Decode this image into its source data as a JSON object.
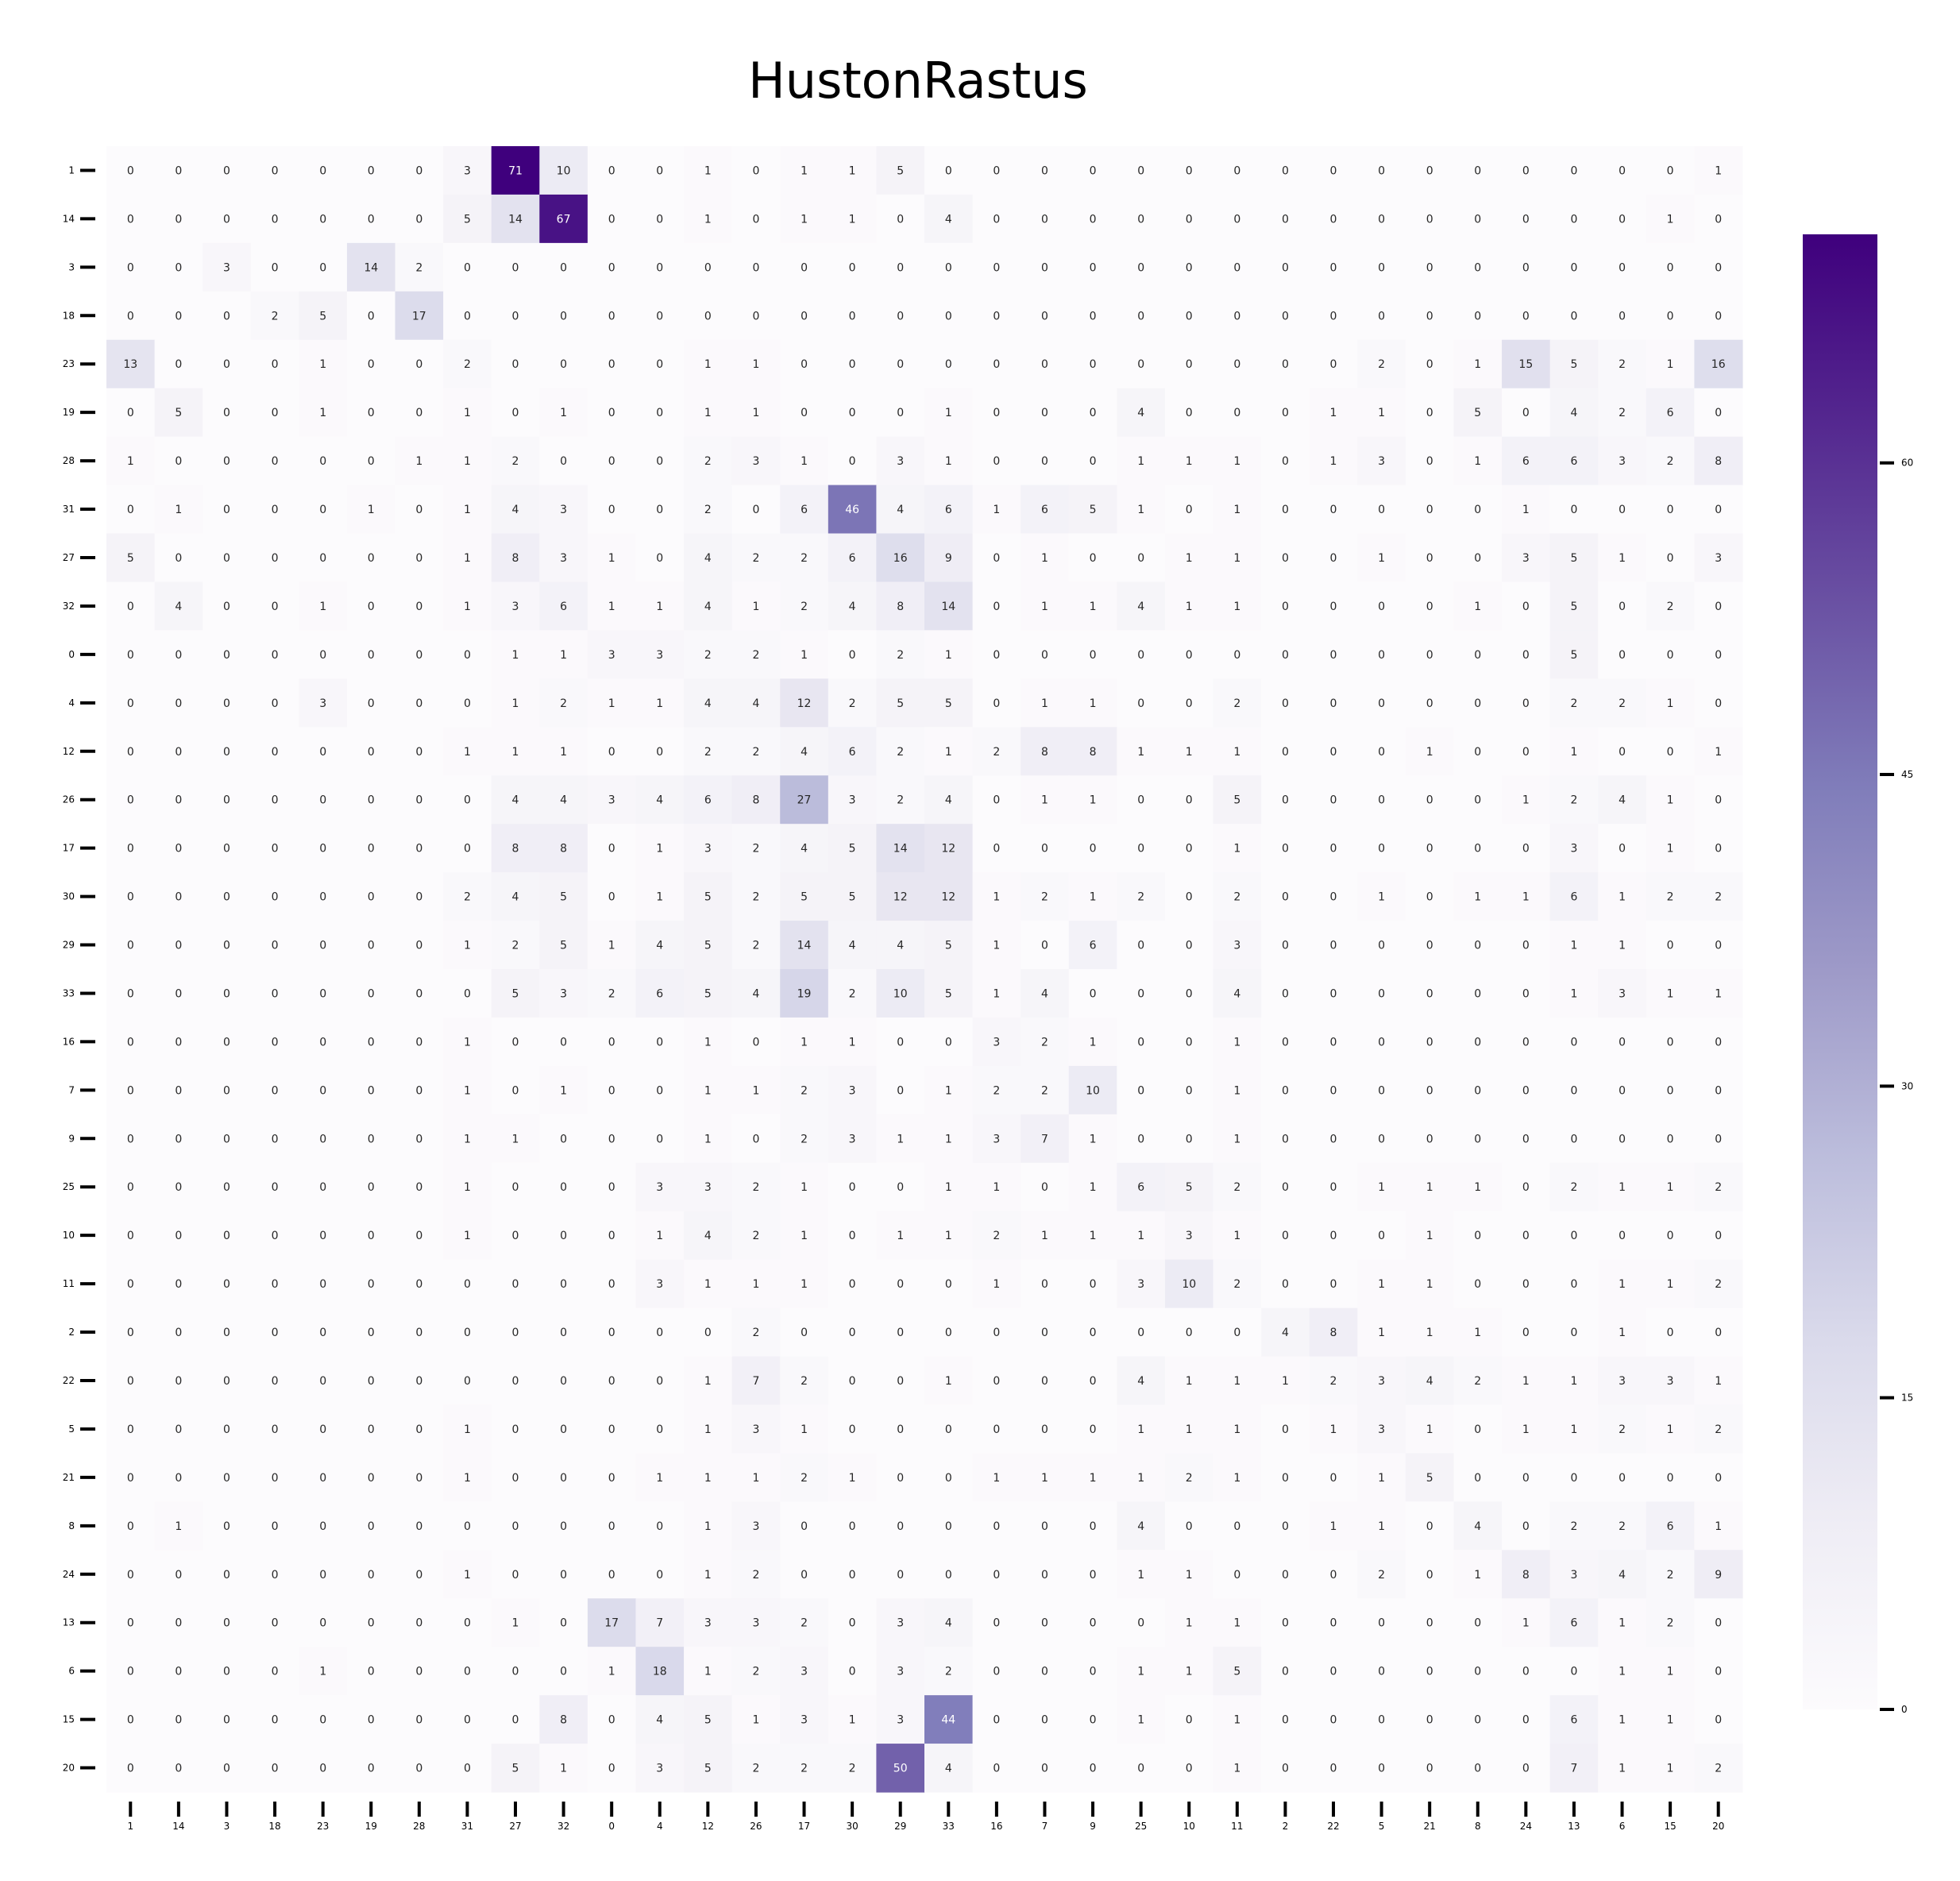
{
  "chart_data": {
    "type": "heatmap",
    "title": "HustonRastus",
    "xlabel": "",
    "ylabel": "",
    "row_labels": [
      "1",
      "14",
      "3",
      "18",
      "23",
      "19",
      "28",
      "31",
      "27",
      "32",
      "0",
      "4",
      "12",
      "26",
      "17",
      "30",
      "29",
      "33",
      "16",
      "7",
      "9",
      "25",
      "10",
      "11",
      "2",
      "22",
      "5",
      "21",
      "8",
      "24",
      "13",
      "6",
      "15",
      "20"
    ],
    "col_labels": [
      "1",
      "14",
      "3",
      "18",
      "23",
      "19",
      "28",
      "31",
      "27",
      "32",
      "0",
      "4",
      "12",
      "26",
      "17",
      "30",
      "29",
      "33",
      "16",
      "7",
      "9",
      "25",
      "10",
      "11",
      "2",
      "22",
      "5",
      "21",
      "8",
      "24",
      "13",
      "6",
      "15",
      "20"
    ],
    "values": [
      [
        0,
        0,
        0,
        0,
        0,
        0,
        0,
        3,
        71,
        10,
        0,
        0,
        1,
        0,
        1,
        1,
        5,
        0,
        0,
        0,
        0,
        0,
        0,
        0,
        0,
        0,
        0,
        0,
        0,
        0,
        0,
        0,
        0,
        1
      ],
      [
        0,
        0,
        0,
        0,
        0,
        0,
        0,
        5,
        14,
        67,
        0,
        0,
        1,
        0,
        1,
        1,
        0,
        4,
        0,
        0,
        0,
        0,
        0,
        0,
        0,
        0,
        0,
        0,
        0,
        0,
        0,
        0,
        1,
        0
      ],
      [
        0,
        0,
        3,
        0,
        0,
        14,
        2,
        0,
        0,
        0,
        0,
        0,
        0,
        0,
        0,
        0,
        0,
        0,
        0,
        0,
        0,
        0,
        0,
        0,
        0,
        0,
        0,
        0,
        0,
        0,
        0,
        0,
        0,
        0
      ],
      [
        0,
        0,
        0,
        2,
        5,
        0,
        17,
        0,
        0,
        0,
        0,
        0,
        0,
        0,
        0,
        0,
        0,
        0,
        0,
        0,
        0,
        0,
        0,
        0,
        0,
        0,
        0,
        0,
        0,
        0,
        0,
        0,
        0,
        0
      ],
      [
        13,
        0,
        0,
        0,
        1,
        0,
        0,
        2,
        0,
        0,
        0,
        0,
        1,
        1,
        0,
        0,
        0,
        0,
        0,
        0,
        0,
        0,
        0,
        0,
        0,
        0,
        2,
        0,
        1,
        15,
        5,
        2,
        1,
        16
      ],
      [
        0,
        5,
        0,
        0,
        1,
        0,
        0,
        1,
        0,
        1,
        0,
        0,
        1,
        1,
        0,
        0,
        0,
        1,
        0,
        0,
        0,
        4,
        0,
        0,
        0,
        1,
        1,
        0,
        5,
        0,
        4,
        2,
        6,
        0
      ],
      [
        1,
        0,
        0,
        0,
        0,
        0,
        1,
        1,
        2,
        0,
        0,
        0,
        2,
        3,
        1,
        0,
        3,
        1,
        0,
        0,
        0,
        1,
        1,
        1,
        0,
        1,
        3,
        0,
        1,
        6,
        6,
        3,
        2,
        8
      ],
      [
        0,
        1,
        0,
        0,
        0,
        1,
        0,
        1,
        4,
        3,
        0,
        0,
        2,
        0,
        6,
        46,
        4,
        6,
        1,
        6,
        5,
        1,
        0,
        1,
        0,
        0,
        0,
        0,
        0,
        1,
        0,
        0,
        0,
        0
      ],
      [
        5,
        0,
        0,
        0,
        0,
        0,
        0,
        1,
        8,
        3,
        1,
        0,
        4,
        2,
        2,
        6,
        16,
        9,
        0,
        1,
        0,
        0,
        1,
        1,
        0,
        0,
        1,
        0,
        0,
        3,
        5,
        1,
        0,
        3
      ],
      [
        0,
        4,
        0,
        0,
        1,
        0,
        0,
        1,
        3,
        6,
        1,
        1,
        4,
        1,
        2,
        4,
        8,
        14,
        0,
        1,
        1,
        4,
        1,
        1,
        0,
        0,
        0,
        0,
        1,
        0,
        5,
        0,
        2,
        0
      ],
      [
        0,
        0,
        0,
        0,
        0,
        0,
        0,
        0,
        1,
        1,
        3,
        3,
        2,
        2,
        1,
        0,
        2,
        1,
        0,
        0,
        0,
        0,
        0,
        0,
        0,
        0,
        0,
        0,
        0,
        0,
        5,
        0,
        0,
        0
      ],
      [
        0,
        0,
        0,
        0,
        3,
        0,
        0,
        0,
        1,
        2,
        1,
        1,
        4,
        4,
        12,
        2,
        5,
        5,
        0,
        1,
        1,
        0,
        0,
        2,
        0,
        0,
        0,
        0,
        0,
        0,
        2,
        2,
        1,
        0
      ],
      [
        0,
        0,
        0,
        0,
        0,
        0,
        0,
        1,
        1,
        1,
        0,
        0,
        2,
        2,
        4,
        6,
        2,
        1,
        2,
        8,
        8,
        1,
        1,
        1,
        0,
        0,
        0,
        1,
        0,
        0,
        1,
        0,
        0,
        1
      ],
      [
        0,
        0,
        0,
        0,
        0,
        0,
        0,
        0,
        4,
        4,
        3,
        4,
        6,
        8,
        27,
        3,
        2,
        4,
        0,
        1,
        1,
        0,
        0,
        5,
        0,
        0,
        0,
        0,
        0,
        1,
        2,
        4,
        1,
        0
      ],
      [
        0,
        0,
        0,
        0,
        0,
        0,
        0,
        0,
        8,
        8,
        0,
        1,
        3,
        2,
        4,
        5,
        14,
        12,
        0,
        0,
        0,
        0,
        0,
        1,
        0,
        0,
        0,
        0,
        0,
        0,
        3,
        0,
        1,
        0
      ],
      [
        0,
        0,
        0,
        0,
        0,
        0,
        0,
        2,
        4,
        5,
        0,
        1,
        5,
        2,
        5,
        5,
        12,
        12,
        1,
        2,
        1,
        2,
        0,
        2,
        0,
        0,
        1,
        0,
        1,
        1,
        6,
        1,
        2,
        2
      ],
      [
        0,
        0,
        0,
        0,
        0,
        0,
        0,
        1,
        2,
        5,
        1,
        4,
        5,
        2,
        14,
        4,
        4,
        5,
        1,
        0,
        6,
        0,
        0,
        3,
        0,
        0,
        0,
        0,
        0,
        0,
        1,
        1,
        0,
        0
      ],
      [
        0,
        0,
        0,
        0,
        0,
        0,
        0,
        0,
        5,
        3,
        2,
        6,
        5,
        4,
        19,
        2,
        10,
        5,
        1,
        4,
        0,
        0,
        0,
        4,
        0,
        0,
        0,
        0,
        0,
        0,
        1,
        3,
        1,
        1
      ],
      [
        0,
        0,
        0,
        0,
        0,
        0,
        0,
        1,
        0,
        0,
        0,
        0,
        1,
        0,
        1,
        1,
        0,
        0,
        3,
        2,
        1,
        0,
        0,
        1,
        0,
        0,
        0,
        0,
        0,
        0,
        0,
        0,
        0,
        0
      ],
      [
        0,
        0,
        0,
        0,
        0,
        0,
        0,
        1,
        0,
        1,
        0,
        0,
        1,
        1,
        2,
        3,
        0,
        1,
        2,
        2,
        10,
        0,
        0,
        1,
        0,
        0,
        0,
        0,
        0,
        0,
        0,
        0,
        0,
        0
      ],
      [
        0,
        0,
        0,
        0,
        0,
        0,
        0,
        1,
        1,
        0,
        0,
        0,
        1,
        0,
        2,
        3,
        1,
        1,
        3,
        7,
        1,
        0,
        0,
        1,
        0,
        0,
        0,
        0,
        0,
        0,
        0,
        0,
        0,
        0
      ],
      [
        0,
        0,
        0,
        0,
        0,
        0,
        0,
        1,
        0,
        0,
        0,
        3,
        3,
        2,
        1,
        0,
        0,
        1,
        1,
        0,
        1,
        6,
        5,
        2,
        0,
        0,
        1,
        1,
        1,
        0,
        2,
        1,
        1,
        2
      ],
      [
        0,
        0,
        0,
        0,
        0,
        0,
        0,
        1,
        0,
        0,
        0,
        1,
        4,
        2,
        1,
        0,
        1,
        1,
        2,
        1,
        1,
        1,
        3,
        1,
        0,
        0,
        0,
        1,
        0,
        0,
        0,
        0,
        0,
        0
      ],
      [
        0,
        0,
        0,
        0,
        0,
        0,
        0,
        0,
        0,
        0,
        0,
        3,
        1,
        1,
        1,
        0,
        0,
        0,
        1,
        0,
        0,
        3,
        10,
        2,
        0,
        0,
        1,
        1,
        0,
        0,
        0,
        1,
        1,
        2
      ],
      [
        0,
        0,
        0,
        0,
        0,
        0,
        0,
        0,
        0,
        0,
        0,
        0,
        0,
        2,
        0,
        0,
        0,
        0,
        0,
        0,
        0,
        0,
        0,
        0,
        4,
        8,
        1,
        1,
        1,
        0,
        0,
        1,
        0,
        0
      ],
      [
        0,
        0,
        0,
        0,
        0,
        0,
        0,
        0,
        0,
        0,
        0,
        0,
        1,
        7,
        2,
        0,
        0,
        1,
        0,
        0,
        0,
        4,
        1,
        1,
        1,
        2,
        3,
        4,
        2,
        1,
        1,
        3,
        3,
        1
      ],
      [
        0,
        0,
        0,
        0,
        0,
        0,
        0,
        1,
        0,
        0,
        0,
        0,
        1,
        3,
        1,
        0,
        0,
        0,
        0,
        0,
        0,
        1,
        1,
        1,
        0,
        1,
        3,
        1,
        0,
        1,
        1,
        2,
        1,
        2
      ],
      [
        0,
        0,
        0,
        0,
        0,
        0,
        0,
        1,
        0,
        0,
        0,
        1,
        1,
        1,
        2,
        1,
        0,
        0,
        1,
        1,
        1,
        1,
        2,
        1,
        0,
        0,
        1,
        5,
        0,
        0,
        0,
        0,
        0,
        0
      ],
      [
        0,
        1,
        0,
        0,
        0,
        0,
        0,
        0,
        0,
        0,
        0,
        0,
        1,
        3,
        0,
        0,
        0,
        0,
        0,
        0,
        0,
        4,
        0,
        0,
        0,
        1,
        1,
        0,
        4,
        0,
        2,
        2,
        6,
        1
      ],
      [
        0,
        0,
        0,
        0,
        0,
        0,
        0,
        1,
        0,
        0,
        0,
        0,
        1,
        2,
        0,
        0,
        0,
        0,
        0,
        0,
        0,
        1,
        1,
        0,
        0,
        0,
        2,
        0,
        1,
        8,
        3,
        4,
        2,
        9
      ],
      [
        0,
        0,
        0,
        0,
        0,
        0,
        0,
        0,
        1,
        0,
        17,
        7,
        3,
        3,
        2,
        0,
        3,
        4,
        0,
        0,
        0,
        0,
        1,
        1,
        0,
        0,
        0,
        0,
        0,
        1,
        6,
        1,
        2,
        0
      ],
      [
        0,
        0,
        0,
        0,
        1,
        0,
        0,
        0,
        0,
        0,
        1,
        18,
        1,
        2,
        3,
        0,
        3,
        2,
        0,
        0,
        0,
        1,
        1,
        5,
        0,
        0,
        0,
        0,
        0,
        0,
        0,
        1,
        1,
        0
      ],
      [
        0,
        0,
        0,
        0,
        0,
        0,
        0,
        0,
        0,
        8,
        0,
        4,
        5,
        1,
        3,
        1,
        3,
        44,
        0,
        0,
        0,
        1,
        0,
        1,
        0,
        0,
        0,
        0,
        0,
        0,
        6,
        1,
        1,
        0
      ],
      [
        0,
        0,
        0,
        0,
        0,
        0,
        0,
        0,
        5,
        1,
        0,
        3,
        5,
        2,
        2,
        2,
        50,
        4,
        0,
        0,
        0,
        0,
        0,
        1,
        0,
        0,
        0,
        0,
        0,
        0,
        7,
        1,
        1,
        2
      ]
    ],
    "colorbar": {
      "vmin": 0,
      "vmax": 71,
      "ticks": [
        0,
        15,
        30,
        45,
        60
      ],
      "colormap": "Purples",
      "color_low": "#fcfbfd",
      "color_high": "#3f007d"
    },
    "annotations": "cell values printed in each cell",
    "grid": false,
    "legend": "colorbar-right"
  }
}
